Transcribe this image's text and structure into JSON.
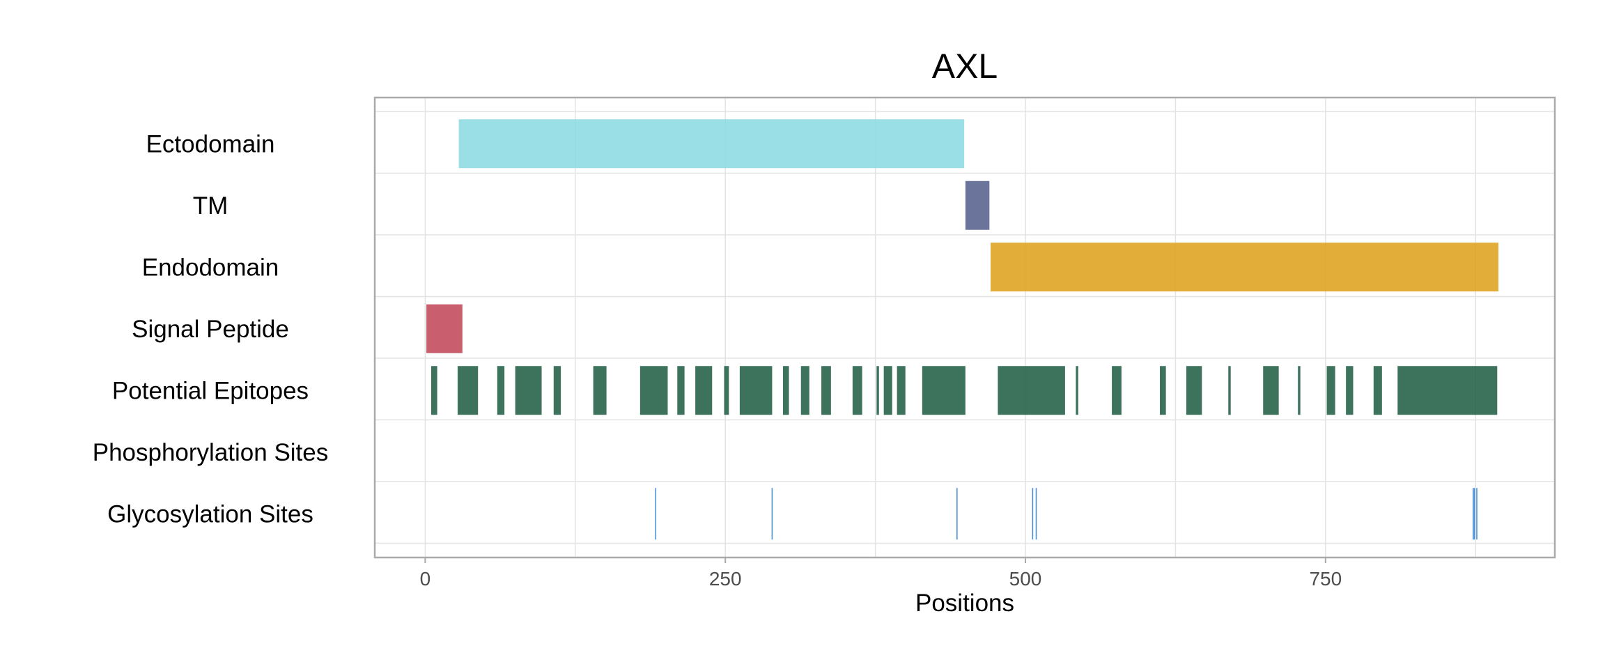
{
  "chart_data": {
    "type": "bar",
    "orientation": "horizontal-ranges",
    "title": "AXL",
    "xlabel": "Positions",
    "ylabel": "",
    "xlim": [
      -42,
      941
    ],
    "xticks": [
      0,
      250,
      500,
      750
    ],
    "x_minor_gridlines": [
      125,
      375,
      625,
      875
    ],
    "grid": true,
    "legend": "none",
    "tracks": [
      {
        "label": "Ectodomain",
        "color": "#8cd9e2",
        "segments": [
          [
            28,
            449
          ]
        ]
      },
      {
        "label": "TM",
        "color": "#56618c",
        "segments": [
          [
            450,
            470
          ]
        ]
      },
      {
        "label": "Endodomain",
        "color": "#dea31e",
        "segments": [
          [
            471,
            894
          ]
        ]
      },
      {
        "label": "Signal Peptide",
        "color": "#c0485a",
        "segments": [
          [
            1,
            31
          ]
        ]
      },
      {
        "label": "Potential Epitopes",
        "color": "#225f45",
        "segments": [
          [
            5,
            10
          ],
          [
            27,
            44
          ],
          [
            60,
            66
          ],
          [
            75,
            97
          ],
          [
            107,
            113
          ],
          [
            140,
            151
          ],
          [
            179,
            202
          ],
          [
            210,
            216
          ],
          [
            225,
            239
          ],
          [
            249,
            253
          ],
          [
            262,
            289
          ],
          [
            298,
            303
          ],
          [
            313,
            320
          ],
          [
            330,
            338
          ],
          [
            356,
            364
          ],
          [
            376,
            378
          ],
          [
            382,
            389
          ],
          [
            393,
            400
          ],
          [
            414,
            450
          ],
          [
            477,
            533
          ],
          [
            542,
            544
          ],
          [
            572,
            580
          ],
          [
            612,
            617
          ],
          [
            634,
            647
          ],
          [
            669,
            671
          ],
          [
            698,
            711
          ],
          [
            727,
            729
          ],
          [
            751,
            758
          ],
          [
            767,
            773
          ],
          [
            790,
            797
          ],
          [
            810,
            893
          ]
        ]
      },
      {
        "label": "Phosphorylation Sites",
        "color": "#225f45",
        "segments": []
      },
      {
        "label": "Glycosylation Sites",
        "color": "#4a90d9",
        "sites": [
          192,
          289,
          443,
          506,
          509,
          873,
          874,
          876
        ]
      }
    ]
  }
}
